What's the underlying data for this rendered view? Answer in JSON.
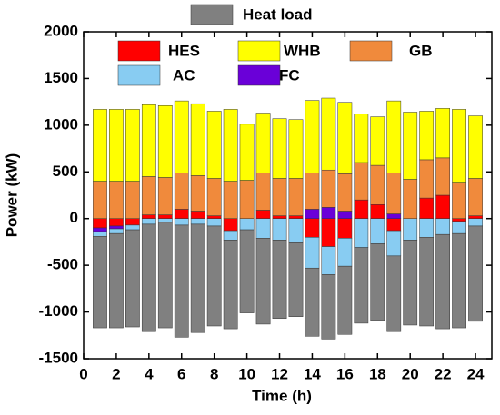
{
  "chart_data": {
    "type": "bar",
    "stacked": true,
    "x_label": "Time (h)",
    "y_label": "Power (kW)",
    "x": [
      1,
      2,
      3,
      4,
      5,
      6,
      7,
      8,
      9,
      10,
      11,
      12,
      13,
      14,
      15,
      16,
      17,
      18,
      19,
      20,
      21,
      22,
      23,
      24
    ],
    "xlim": [
      0,
      25
    ],
    "xticks": [
      0,
      2,
      4,
      6,
      8,
      10,
      12,
      14,
      16,
      18,
      20,
      22,
      24
    ],
    "ylim": [
      -1500,
      2000
    ],
    "yticks": [
      -1500,
      -1000,
      -500,
      0,
      500,
      1000,
      1500,
      2000
    ],
    "series": [
      {
        "name": "HES",
        "color": "#ff0000",
        "values": [
          -100,
          -80,
          -70,
          40,
          40,
          100,
          80,
          30,
          -130,
          0,
          90,
          30,
          30,
          -200,
          -300,
          -210,
          200,
          150,
          -130,
          0,
          220,
          250,
          -30,
          30
        ]
      },
      {
        "name": "FC",
        "color": "#6a00d8",
        "values": [
          -40,
          -30,
          0,
          0,
          0,
          0,
          0,
          0,
          0,
          0,
          0,
          0,
          0,
          100,
          120,
          80,
          0,
          0,
          50,
          0,
          0,
          0,
          0,
          0
        ]
      },
      {
        "name": "AC",
        "color": "#88ccf2",
        "values": [
          -50,
          -50,
          -50,
          -60,
          -40,
          -70,
          -60,
          -80,
          -100,
          -120,
          -210,
          -230,
          -260,
          -330,
          -300,
          -300,
          -310,
          -270,
          -270,
          -230,
          -200,
          -170,
          -130,
          -80
        ]
      },
      {
        "name": "GB",
        "color": "#f08a3c",
        "values": [
          400,
          400,
          400,
          410,
          400,
          390,
          380,
          400,
          400,
          410,
          400,
          400,
          400,
          390,
          400,
          400,
          400,
          420,
          440,
          420,
          410,
          400,
          390,
          400
        ]
      },
      {
        "name": "WHB",
        "color": "#ffff00",
        "values": [
          770,
          770,
          770,
          770,
          770,
          770,
          770,
          720,
          770,
          600,
          640,
          640,
          630,
          775,
          770,
          765,
          520,
          520,
          770,
          720,
          520,
          530,
          780,
          670
        ]
      },
      {
        "name": "Heat load",
        "color": "#808080",
        "values": [
          -980,
          -1010,
          -1040,
          -1150,
          -1130,
          -1200,
          -1160,
          -1070,
          -950,
          -890,
          -920,
          -840,
          -790,
          -730,
          -690,
          -730,
          -810,
          -820,
          -810,
          -910,
          -950,
          -1010,
          -1010,
          -1020
        ]
      }
    ]
  }
}
